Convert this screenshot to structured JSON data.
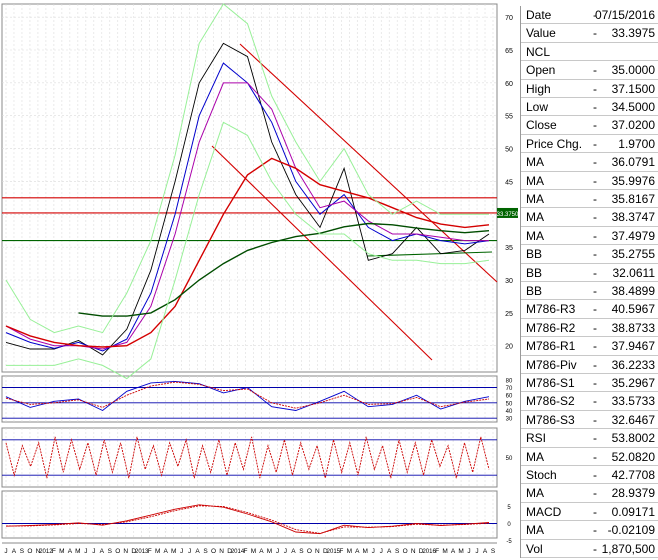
{
  "chart_data": {
    "type": "line",
    "title": "",
    "instrument": "NCL",
    "panels": [
      {
        "id": "price",
        "ylim": [
          16,
          72
        ],
        "yticks": [
          20,
          25,
          30,
          35,
          40,
          45,
          50,
          55,
          60,
          65,
          70
        ],
        "grid": true,
        "current_value_tag": "33.3750",
        "horizontal_lines": [
          {
            "value": 42.5,
            "color": "#d40000"
          },
          {
            "value": 40.2,
            "color": "#d40000"
          },
          {
            "value": 36.0,
            "color": "#006400"
          }
        ]
      },
      {
        "id": "rsi",
        "ylim": [
          25,
          85
        ],
        "yticks": [
          30,
          40,
          50,
          60,
          70,
          80
        ],
        "bands": [
          70,
          30
        ],
        "center": 50
      },
      {
        "id": "stoch",
        "bands": [
          80,
          20
        ],
        "yticks": [
          50
        ]
      },
      {
        "id": "macd",
        "yticks": [
          5,
          0,
          -5
        ],
        "zero_line": true
      }
    ],
    "x_axis": {
      "labels": [
        "J",
        "A",
        "S",
        "O",
        "N",
        "2012",
        "F",
        "M",
        "A",
        "M",
        "J",
        "J",
        "A",
        "S",
        "O",
        "N",
        "D",
        "2013",
        "F",
        "M",
        "A",
        "M",
        "J",
        "J",
        "A",
        "S",
        "O",
        "N",
        "D",
        "2014",
        "F",
        "M",
        "A",
        "M",
        "J",
        "J",
        "A",
        "S",
        "O",
        "N",
        "D",
        "2015",
        "F",
        "M",
        "A",
        "M",
        "J",
        "J",
        "A",
        "S",
        "O",
        "N",
        "D",
        "2016",
        "F",
        "M",
        "A",
        "M",
        "J",
        "J",
        "A",
        "S"
      ]
    },
    "x": [
      "2011-07",
      "2011-10",
      "2012-01",
      "2012-04",
      "2012-07",
      "2012-10",
      "2013-01",
      "2013-04",
      "2013-07",
      "2013-10",
      "2014-01",
      "2014-04",
      "2014-07",
      "2014-10",
      "2015-01",
      "2015-04",
      "2015-07",
      "2015-10",
      "2016-01",
      "2016-04",
      "2016-07"
    ],
    "series": [
      {
        "id": "close",
        "color": "#000000",
        "values": [
          20.5,
          19.5,
          19.5,
          20.8,
          18.6,
          22.5,
          31.5,
          45,
          60,
          66,
          64,
          51,
          43,
          38,
          47,
          33,
          34,
          38,
          34,
          34.5,
          37
        ]
      },
      {
        "id": "ma_fast",
        "color": "#0000cc",
        "values": [
          22,
          20.5,
          19.6,
          20.5,
          19.2,
          21,
          28,
          40,
          55,
          63,
          60,
          54,
          45,
          40,
          43,
          38,
          36,
          37,
          36,
          35.5,
          36
        ]
      },
      {
        "id": "ma_mid",
        "color": "#aa00aa",
        "values": [
          23,
          21,
          20,
          20,
          19.5,
          20.5,
          26,
          37,
          51,
          60,
          60,
          56,
          47,
          41,
          42,
          39,
          37,
          37,
          36.5,
          36,
          36
        ]
      },
      {
        "id": "ma_200",
        "color": "#d40000",
        "values": [
          23,
          21.5,
          20.5,
          20,
          19.8,
          20,
          22,
          26,
          33,
          40,
          46,
          48.5,
          47,
          44.5,
          43.5,
          42.5,
          41,
          39.5,
          38.5,
          38,
          38.4
        ]
      },
      {
        "id": "ma_long",
        "color": "#004d00",
        "values": [
          null,
          null,
          null,
          25,
          24.5,
          24.5,
          25,
          27,
          30,
          32.5,
          34.5,
          35.7,
          36.6,
          37.1,
          38.1,
          38.6,
          38.4,
          37.9,
          37.5,
          37.2,
          37.5
        ]
      },
      {
        "id": "bb_upper",
        "color": "#98f098",
        "values": [
          30,
          24,
          22,
          23,
          22,
          28,
          36,
          49,
          66,
          72,
          69,
          58,
          51,
          45,
          50,
          43,
          40,
          42,
          40,
          40,
          40
        ]
      },
      {
        "id": "bb_lower",
        "color": "#98f098",
        "values": [
          17,
          17,
          17,
          18,
          17,
          15,
          18,
          30,
          43,
          54,
          52,
          45,
          40,
          37,
          37,
          34,
          33,
          33,
          32.5,
          32.5,
          33
        ]
      }
    ],
    "rsi": [
      58,
      44,
      52,
      55,
      40,
      65,
      76,
      78,
      75,
      63,
      70,
      45,
      40,
      52,
      65,
      45,
      48,
      60,
      42,
      52,
      58
    ],
    "rsi_ma": [
      56,
      48,
      50,
      54,
      44,
      60,
      72,
      77,
      74,
      66,
      68,
      50,
      43,
      50,
      60,
      48,
      49,
      57,
      45,
      51,
      55
    ],
    "stoch_k": [
      75,
      20,
      70,
      35,
      75,
      15,
      85,
      25,
      80,
      30,
      75,
      20,
      80,
      25,
      75,
      15,
      85,
      30,
      70,
      20,
      75,
      35,
      80,
      15,
      70,
      25,
      80,
      20,
      75,
      30,
      85,
      15,
      70,
      25,
      80,
      20,
      75,
      30,
      70,
      15,
      80,
      25,
      75,
      20,
      85,
      30,
      70,
      15,
      80,
      25,
      75,
      20,
      80,
      35,
      70,
      15,
      75,
      25,
      85,
      30
    ],
    "macd": [
      -0.8,
      -0.6,
      -0.3,
      0.2,
      -0.5,
      0.8,
      2.5,
      4.2,
      5.5,
      4.8,
      2.8,
      0.5,
      -2.5,
      -3,
      -0.5,
      -1.2,
      -0.8,
      0,
      -0.6,
      -0.2,
      0.3
    ],
    "macd_signal": [
      -0.7,
      -0.7,
      -0.4,
      0,
      -0.3,
      0.5,
      2,
      3.8,
      5.2,
      5,
      3.2,
      1,
      -1.8,
      -2.9,
      -1,
      -1.1,
      -0.9,
      -0.2,
      -0.5,
      -0.3,
      0.1
    ],
    "y_labels": {
      "rsi": [
        "80",
        "70",
        "60",
        "50",
        "40",
        "30"
      ],
      "stoch": [
        "50"
      ],
      "macd": [
        "5",
        "0",
        "-5"
      ]
    }
  },
  "info_panel": [
    {
      "label": "Date",
      "value": "07/15/2016"
    },
    {
      "label": "Value",
      "value": "33.3975"
    },
    {
      "label": "NCL",
      "value": ""
    },
    {
      "label": "Open",
      "value": "35.0000"
    },
    {
      "label": "High",
      "value": "37.1500"
    },
    {
      "label": "Low",
      "value": "34.5000"
    },
    {
      "label": "Close",
      "value": "37.0200"
    },
    {
      "label": "Price Chg.",
      "value": "1.9700"
    },
    {
      "label": "MA",
      "value": "36.0791"
    },
    {
      "label": "MA",
      "value": "35.9976"
    },
    {
      "label": "MA",
      "value": "35.8167"
    },
    {
      "label": "MA",
      "value": "38.3747"
    },
    {
      "label": "MA",
      "value": "37.4979"
    },
    {
      "label": "BB",
      "value": "35.2755"
    },
    {
      "label": "BB",
      "value": "32.0611"
    },
    {
      "label": "BB",
      "value": "38.4899"
    },
    {
      "label": "M786-R3",
      "value": "40.5967"
    },
    {
      "label": "M786-R2",
      "value": "38.8733"
    },
    {
      "label": "M786-R1",
      "value": "37.9467"
    },
    {
      "label": "M786-Piv",
      "value": "36.2233"
    },
    {
      "label": "M786-S1",
      "value": "35.2967"
    },
    {
      "label": "M786-S2",
      "value": "33.5733"
    },
    {
      "label": "M786-S3",
      "value": "32.6467"
    },
    {
      "label": "RSI",
      "value": "53.8002"
    },
    {
      "label": "MA",
      "value": "52.0820"
    },
    {
      "label": "Stoch",
      "value": "42.7708"
    },
    {
      "label": "MA",
      "value": "28.9379"
    },
    {
      "label": "MACD",
      "value": "0.09171"
    },
    {
      "label": "MA",
      "value": "-0.02109"
    },
    {
      "label": "Vol",
      "value": "1,870,500"
    }
  ]
}
